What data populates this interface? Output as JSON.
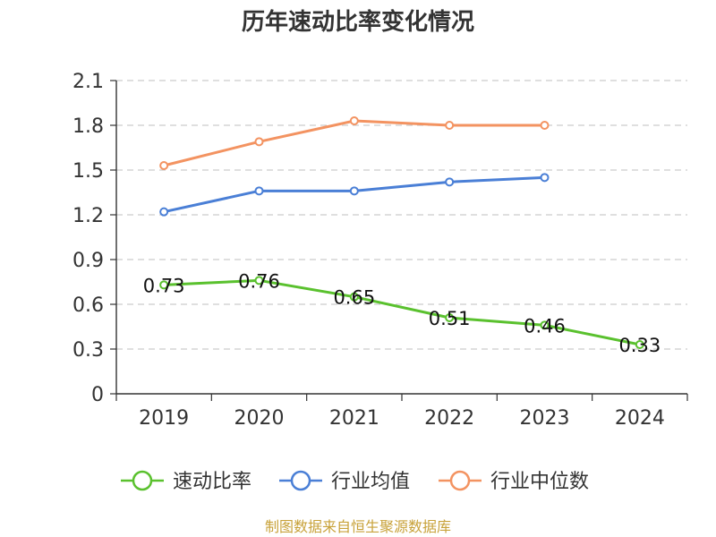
{
  "chart_data": {
    "type": "line",
    "title": "历年速动比率变化情况",
    "xlabel": "",
    "ylabel": "",
    "categories": [
      "2019",
      "2020",
      "2021",
      "2022",
      "2023",
      "2024"
    ],
    "ylim": [
      0,
      2.1
    ],
    "yticks": [
      "0",
      "0.3",
      "0.6",
      "0.9",
      "1.2",
      "1.5",
      "1.8",
      "2.1"
    ],
    "grid": true,
    "legend_position": "bottom",
    "series": [
      {
        "name": "速动比率",
        "color": "#5ac12e",
        "values": [
          0.73,
          0.76,
          0.65,
          0.51,
          0.46,
          0.33
        ],
        "labels": [
          "0.73",
          "0.76",
          "0.65",
          "0.51",
          "0.46",
          "0.33"
        ]
      },
      {
        "name": "行业均值",
        "color": "#4a7fd6",
        "values": [
          1.22,
          1.36,
          1.36,
          1.42,
          1.45,
          null
        ]
      },
      {
        "name": "行业中位数",
        "color": "#f39361",
        "values": [
          1.53,
          1.69,
          1.83,
          1.8,
          1.8,
          null
        ]
      }
    ],
    "source": "制图数据来自恒生聚源数据库"
  }
}
